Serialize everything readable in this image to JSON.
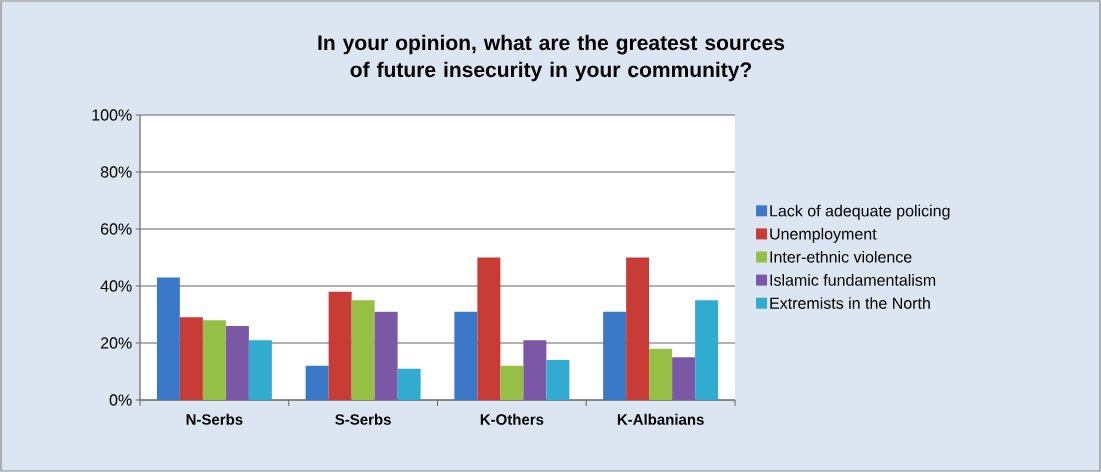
{
  "chart_data": {
    "type": "bar",
    "title": "In your opinion, what are the greatest sources of future insecurity in your community?",
    "categories": [
      "N-Serbs",
      "S-Serbs",
      "K-Others",
      "K-Albanians"
    ],
    "series": [
      {
        "name": "Lack of adequate policing",
        "color": "#3c78c8",
        "values": [
          43,
          12,
          31,
          31
        ]
      },
      {
        "name": "Unemployment",
        "color": "#c83c37",
        "values": [
          29,
          38,
          50,
          50
        ]
      },
      {
        "name": "Inter-ethnic violence",
        "color": "#96c045",
        "values": [
          28,
          35,
          12,
          18
        ]
      },
      {
        "name": "Islamic fundamentalism",
        "color": "#7a58a6",
        "values": [
          26,
          31,
          21,
          15
        ]
      },
      {
        "name": "Extremists in the North",
        "color": "#31acd0",
        "values": [
          21,
          11,
          14,
          35
        ]
      }
    ],
    "ylim": [
      0,
      100
    ],
    "yticks": [
      {
        "value": 0,
        "label": "0%"
      },
      {
        "value": 20,
        "label": "20%"
      },
      {
        "value": 40,
        "label": "40%"
      },
      {
        "value": 60,
        "label": "60%"
      },
      {
        "value": 80,
        "label": "80%"
      },
      {
        "value": 100,
        "label": "100%"
      }
    ],
    "grid": "y",
    "legend": "right"
  }
}
